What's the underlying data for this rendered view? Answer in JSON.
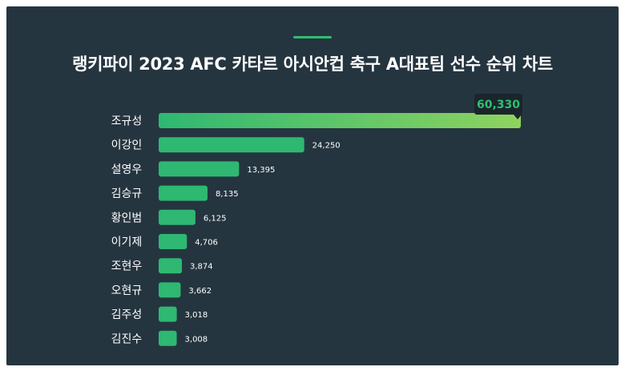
{
  "title": "랭키파이 2023 AFC 카타르 아시안컵 축구 A대표팀 선수 순위 차트",
  "colors": {
    "background": "#253540",
    "accent": "#2fbf71",
    "bar": "#2eb872",
    "bar_top_end": "#8fd35f",
    "callout_bg": "#1b252c",
    "callout_text": "#2fbf71"
  },
  "chart_data": {
    "type": "bar",
    "orientation": "horizontal",
    "categories": [
      "조규성",
      "이강인",
      "설영우",
      "김승규",
      "황인범",
      "이기제",
      "조현우",
      "오현규",
      "김주성",
      "김진수"
    ],
    "values": [
      60330,
      24250,
      13395,
      8135,
      6125,
      4706,
      3874,
      3662,
      3018,
      3008
    ],
    "value_labels": [
      "60,330",
      "24,250",
      "13,395",
      "8,135",
      "6,125",
      "4,706",
      "3,874",
      "3,662",
      "3,018",
      "3,008"
    ],
    "title": "랭키파이 2023 AFC 카타르 아시안컵 축구 A대표팀 선수 순위 차트",
    "xlabel": "",
    "ylabel": "",
    "grid": false,
    "legend": "none"
  }
}
